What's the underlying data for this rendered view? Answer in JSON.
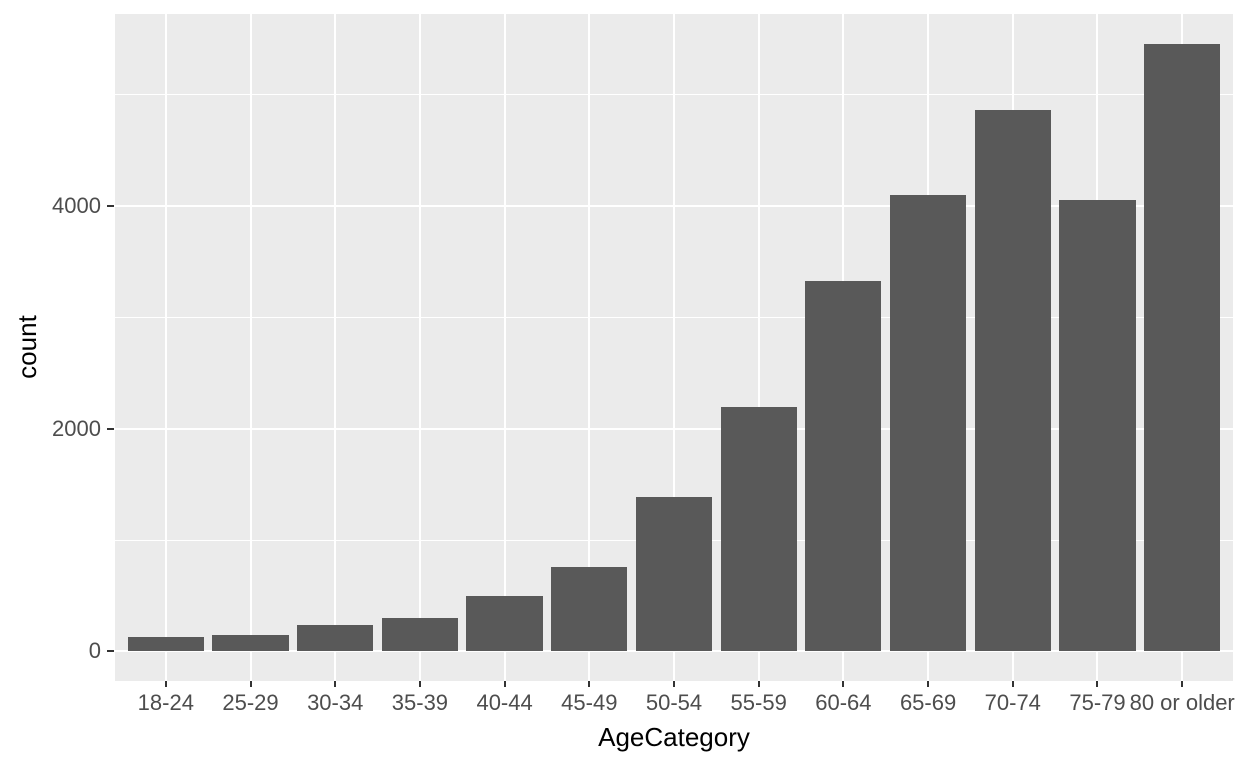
{
  "chart_data": {
    "type": "bar",
    "title": "",
    "xlabel": "AgeCategory",
    "ylabel": "count",
    "categories": [
      "18-24",
      "25-29",
      "30-34",
      "35-39",
      "40-44",
      "45-49",
      "50-54",
      "55-59",
      "60-64",
      "65-69",
      "70-74",
      "75-79",
      "80 or older"
    ],
    "values": [
      130,
      145,
      235,
      300,
      495,
      755,
      1390,
      2200,
      3330,
      4100,
      4860,
      4055,
      5460
    ],
    "yticks": [
      0,
      2000,
      4000
    ],
    "yticks_minor": [
      1000,
      3000,
      5000
    ],
    "ylim": [
      -265,
      5725
    ],
    "legend_position": "none",
    "grid": "on",
    "colors": {
      "bar_fill": "#595959",
      "panel_background": "#EBEBEB",
      "gridline": "#FFFFFF",
      "tick_label": "#4D4D4D",
      "axis_title": "#000000",
      "tick_mark": "#333333",
      "figure_background": "#FFFFFF"
    }
  }
}
